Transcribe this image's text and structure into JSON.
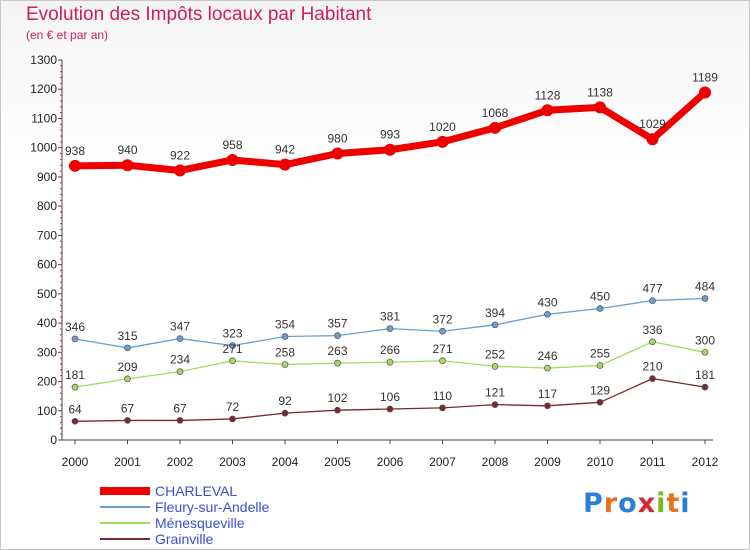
{
  "title": "Evolution des Impôts locaux par Habitant",
  "subtitle": "(en € et par an)",
  "logo": {
    "text": "Proxiti",
    "letters": [
      "P",
      "r",
      "o",
      "x",
      "i",
      "t",
      "i"
    ],
    "colors": [
      "#2a7fd4",
      "#e8731c",
      "#2a7fd4",
      "#d9262c",
      "#7ab829",
      "#e8731c",
      "#2a7fd4"
    ]
  },
  "chart_data": {
    "type": "line",
    "title": "Evolution des Impôts locaux par Habitant",
    "subtitle": "(en € et par an)",
    "x": [
      "2000",
      "2001",
      "2002",
      "2003",
      "2004",
      "2005",
      "2006",
      "2007",
      "2008",
      "2009",
      "2010",
      "2011",
      "2012"
    ],
    "ylim": [
      0,
      1300
    ],
    "yticks": [
      0,
      100,
      200,
      300,
      400,
      500,
      600,
      700,
      800,
      900,
      1000,
      1100,
      1200,
      1300
    ],
    "grid": false,
    "legend": "bottom-left",
    "series": [
      {
        "name": "CHARLEVAL",
        "color": "#ee0000",
        "values": [
          938,
          940,
          922,
          958,
          942,
          980,
          993,
          1020,
          1068,
          1128,
          1138,
          1029,
          1189
        ]
      },
      {
        "name": "Fleury-sur-Andelle",
        "color": "#6a9fd3",
        "values": [
          346,
          315,
          347,
          323,
          354,
          357,
          381,
          372,
          394,
          430,
          450,
          477,
          484
        ]
      },
      {
        "name": "Ménesqueville",
        "color": "#9fdc5f",
        "values": [
          181,
          209,
          234,
          271,
          258,
          263,
          266,
          271,
          252,
          246,
          255,
          336,
          300
        ]
      },
      {
        "name": "Grainville",
        "color": "#7a2a2a",
        "values": [
          64,
          67,
          67,
          72,
          92,
          102,
          106,
          110,
          121,
          117,
          129,
          210,
          181
        ]
      }
    ]
  }
}
